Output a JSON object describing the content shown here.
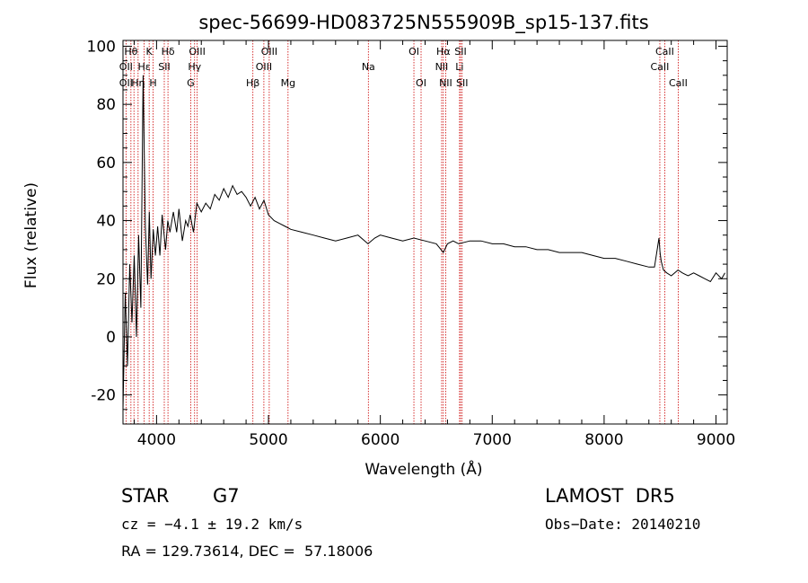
{
  "chart_data": {
    "type": "line",
    "title": "spec-56699-HD083725N555909B_sp15-137.fits",
    "xlabel": "Wavelength (Å)",
    "ylabel": "Flux (relative)",
    "xlim": [
      3700,
      9100
    ],
    "ylim": [
      -30,
      102
    ],
    "x_ticks": [
      4000,
      5000,
      6000,
      7000,
      8000,
      9000
    ],
    "y_ticks": [
      -20,
      0,
      20,
      40,
      60,
      80,
      100
    ],
    "grid": false,
    "series": [
      {
        "x": [
          3700,
          3720,
          3740,
          3760,
          3780,
          3800,
          3820,
          3840,
          3860,
          3880,
          3900,
          3920,
          3935,
          3950,
          3970,
          3990,
          4010,
          4030,
          4050,
          4080,
          4100,
          4120,
          4150,
          4180,
          4200,
          4230,
          4260,
          4280,
          4300,
          4330,
          4360,
          4400,
          4440,
          4480,
          4520,
          4560,
          4600,
          4640,
          4680,
          4720,
          4760,
          4800,
          4840,
          4880,
          4920,
          4960,
          5000,
          5050,
          5100,
          5150,
          5200,
          5300,
          5400,
          5500,
          5600,
          5700,
          5800,
          5890,
          5950,
          6000,
          6100,
          6200,
          6300,
          6400,
          6500,
          6563,
          6600,
          6650,
          6700,
          6800,
          6900,
          7000,
          7100,
          7200,
          7300,
          7400,
          7500,
          7600,
          7700,
          7800,
          7900,
          8000,
          8100,
          8200,
          8300,
          8400,
          8450,
          8490,
          8500,
          8510,
          8530,
          8560,
          8600,
          8660,
          8700,
          8750,
          8800,
          8850,
          8900,
          8950,
          9000,
          9050,
          9080
        ],
        "y": [
          -25,
          15,
          -10,
          25,
          5,
          28,
          0,
          35,
          10,
          90,
          38,
          18,
          43,
          20,
          37,
          28,
          38,
          28,
          42,
          30,
          40,
          36,
          43,
          36,
          44,
          33,
          40,
          38,
          42,
          36,
          46,
          43,
          46,
          44,
          49,
          47,
          51,
          48,
          52,
          49,
          50,
          48,
          45,
          48,
          44,
          47,
          42,
          40,
          39,
          38,
          37,
          36,
          35,
          34,
          33,
          34,
          35,
          32,
          34,
          35,
          34,
          33,
          34,
          33,
          32,
          29,
          32,
          33,
          32,
          33,
          33,
          32,
          32,
          31,
          31,
          30,
          30,
          29,
          29,
          29,
          28,
          27,
          27,
          26,
          25,
          24,
          24,
          34,
          29,
          26,
          23,
          22,
          21,
          23,
          22,
          21,
          22,
          21,
          20,
          19,
          22,
          20,
          22
        ]
      }
    ],
    "line_labels": [
      {
        "text": "Hθ",
        "wl": 3771,
        "row": 1
      },
      {
        "text": "OII",
        "wl": 3727,
        "row": 2
      },
      {
        "text": "OII",
        "wl": 3727,
        "row": 3
      },
      {
        "text": "Hη",
        "wl": 3835,
        "row": 3
      },
      {
        "text": "Hε",
        "wl": 3889,
        "row": 2
      },
      {
        "text": "K",
        "wl": 3934,
        "row": 1
      },
      {
        "text": "H",
        "wl": 3969,
        "row": 3
      },
      {
        "text": "Hδ",
        "wl": 4102,
        "row": 1
      },
      {
        "text": "SII",
        "wl": 4069,
        "row": 2
      },
      {
        "text": "OIII",
        "wl": 4363,
        "row": 1
      },
      {
        "text": "Hγ",
        "wl": 4340,
        "row": 2
      },
      {
        "text": "G",
        "wl": 4305,
        "row": 3
      },
      {
        "text": "OIII",
        "wl": 5007,
        "row": 1
      },
      {
        "text": "OIII",
        "wl": 4959,
        "row": 2
      },
      {
        "text": "Hβ",
        "wl": 4861,
        "row": 3
      },
      {
        "text": "Mg",
        "wl": 5175,
        "row": 3
      },
      {
        "text": "Na",
        "wl": 5893,
        "row": 2
      },
      {
        "text": "OI",
        "wl": 6300,
        "row": 1
      },
      {
        "text": "OI",
        "wl": 6364,
        "row": 3
      },
      {
        "text": "Hα",
        "wl": 6563,
        "row": 1
      },
      {
        "text": "NII",
        "wl": 6548,
        "row": 2
      },
      {
        "text": "NII",
        "wl": 6584,
        "row": 3
      },
      {
        "text": "SII",
        "wl": 6717,
        "row": 1
      },
      {
        "text": "Li",
        "wl": 6708,
        "row": 2
      },
      {
        "text": "SII",
        "wl": 6731,
        "row": 3
      },
      {
        "text": "CaII",
        "wl": 8542,
        "row": 1
      },
      {
        "text": "CaII",
        "wl": 8498,
        "row": 2
      },
      {
        "text": "CaII",
        "wl": 8662,
        "row": 3
      }
    ],
    "line_markers": [
      3727,
      3771,
      3798,
      3835,
      3889,
      3934,
      3969,
      4069,
      4102,
      4305,
      4340,
      4363,
      4861,
      4959,
      5007,
      5175,
      5893,
      6300,
      6364,
      6548,
      6563,
      6584,
      6708,
      6717,
      6731,
      8498,
      8542,
      8662
    ]
  },
  "info": {
    "object_class": "STAR",
    "subclass": "G7",
    "survey": "LAMOST  DR5",
    "cz": "cz = −4.1 ± 19.2 km/s",
    "obs_date": "Obs−Date: 20140210",
    "coords": "RA = 129.73614, DEC =  57.18006"
  },
  "colors": {
    "spectrum": "#000000",
    "markers": "#cc0000",
    "text": "#000000"
  }
}
